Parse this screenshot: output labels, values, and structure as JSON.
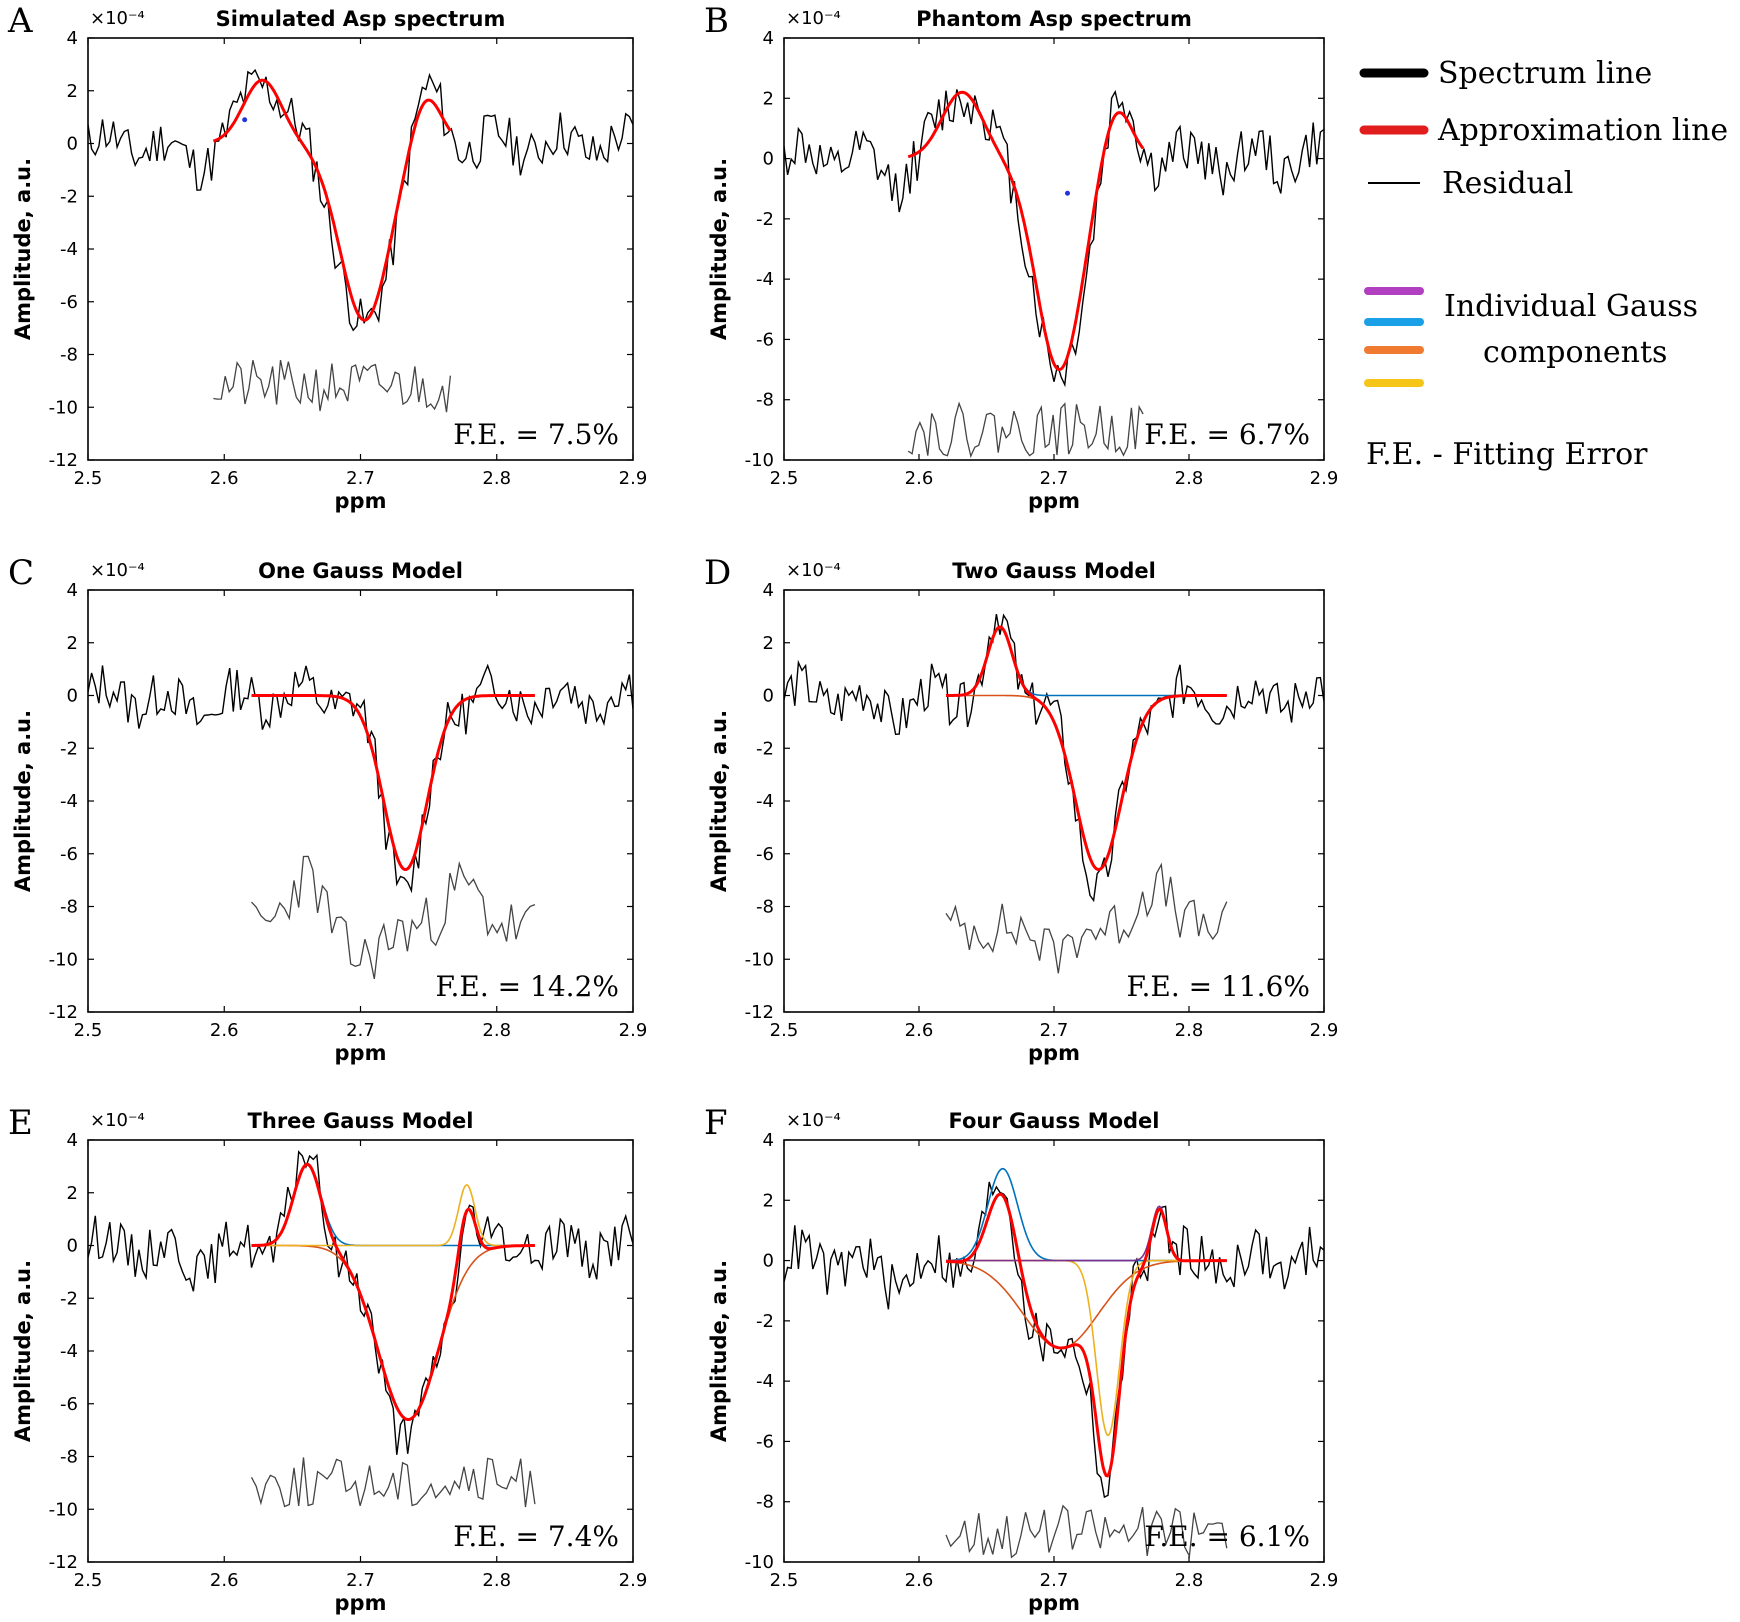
{
  "colors": {
    "spectrum": "#000000",
    "approximation": "#ff0000",
    "residual": "#000000",
    "gauss_purple": "#7e2f8e",
    "gauss_blue": "#0072bd",
    "gauss_orange": "#d95319",
    "gauss_yellow": "#edb120",
    "legend_purple": "#b040c0",
    "legend_blue": "#1aa0e6",
    "legend_orange": "#f07a30",
    "legend_yellow": "#f5c518"
  },
  "legend": {
    "items": [
      {
        "label": "Spectrum line",
        "color": "#000000",
        "thick": true
      },
      {
        "label": "Approximation line",
        "color": "#e21d1d",
        "thick": true
      },
      {
        "label": "Residual",
        "color": "#000000",
        "thick": false
      }
    ],
    "gauss_label_line1": "Individual Gauss",
    "gauss_label_line2": "components",
    "gauss_colors": [
      "#b040c0",
      "#1aa0e6",
      "#f07a30",
      "#f5c518"
    ],
    "fe_note": "F.E. -  Fitting Error"
  },
  "chart_data": [
    {
      "panel": "A",
      "type": "line",
      "title": "Simulated Asp spectrum",
      "xlabel": "ppm",
      "ylabel": "Amplitude, a.u.",
      "exponent": "×10⁻⁴",
      "xlim": [
        2.5,
        2.9
      ],
      "ylim": [
        -12,
        4
      ],
      "xticks": [
        "2.5",
        "2.6",
        "2.7",
        "2.8",
        "2.9"
      ],
      "yticks": [
        "4",
        "2",
        "0",
        "-2",
        "-4",
        "-6",
        "-8",
        "-10",
        "-12"
      ],
      "fe": "F.E. = 7.5%",
      "model": {
        "gaussians": [
          {
            "amp": 2.4,
            "mu": 2.628,
            "sigma": 0.014
          },
          {
            "amp": -6.7,
            "mu": 2.703,
            "sigma": 0.018
          },
          {
            "amp": 1.9,
            "mu": 2.748,
            "sigma": 0.011
          }
        ],
        "range": [
          2.592,
          2.766
        ],
        "show_components": false
      },
      "spectrum": {
        "seed": 11,
        "noise": 0.9
      },
      "residual": {
        "offset": -9.2,
        "amp": 0.9,
        "seed": 21
      },
      "marker": {
        "x": 2.615,
        "y": 0.9
      }
    },
    {
      "panel": "B",
      "type": "line",
      "title": "Phantom Asp spectrum",
      "xlabel": "ppm",
      "ylabel": "Amplitude, a.u.",
      "exponent": "×10⁻⁴",
      "xlim": [
        2.5,
        2.9
      ],
      "ylim": [
        -10,
        4
      ],
      "xticks": [
        "2.5",
        "2.6",
        "2.7",
        "2.8",
        "2.9"
      ],
      "yticks": [
        "4",
        "2",
        "0",
        "-2",
        "-4",
        "-6",
        "-8",
        "-10"
      ],
      "fe": "F.E. = 6.7%",
      "model": {
        "gaussians": [
          {
            "amp": 2.2,
            "mu": 2.632,
            "sigma": 0.015
          },
          {
            "amp": -7.0,
            "mu": 2.704,
            "sigma": 0.017
          },
          {
            "amp": 1.8,
            "mu": 2.746,
            "sigma": 0.011
          }
        ],
        "range": [
          2.592,
          2.766
        ],
        "show_components": false
      },
      "spectrum": {
        "seed": 12,
        "noise": 0.85
      },
      "residual": {
        "offset": -9.0,
        "amp": 0.8,
        "seed": 22
      },
      "marker": {
        "x": 2.71,
        "y": -1.15
      }
    },
    {
      "panel": "C",
      "type": "line",
      "title": "One Gauss Model",
      "xlabel": "ppm",
      "ylabel": "Amplitude, a.u.",
      "exponent": "×10⁻⁴",
      "xlim": [
        2.5,
        2.9
      ],
      "ylim": [
        -12,
        4
      ],
      "xticks": [
        "2.5",
        "2.6",
        "2.7",
        "2.8",
        "2.9"
      ],
      "yticks": [
        "4",
        "2",
        "0",
        "-2",
        "-4",
        "-6",
        "-8",
        "-10",
        "-12"
      ],
      "fe": "F.E. = 14.2%",
      "model": {
        "gaussians": [
          {
            "amp": -6.6,
            "mu": 2.733,
            "sigma": 0.016
          }
        ],
        "range": [
          2.62,
          2.828
        ],
        "show_components": false
      },
      "spectrum": {
        "seed": 13,
        "noise": 0.9
      },
      "residual": {
        "offset": -8.8,
        "amp": 1.0,
        "seed": 23,
        "bumps": [
          {
            "amp": 2.0,
            "mu": 2.66,
            "sigma": 0.012
          },
          {
            "amp": 1.6,
            "mu": 2.775,
            "sigma": 0.012
          },
          {
            "amp": -1.2,
            "mu": 2.7,
            "sigma": 0.015
          }
        ]
      },
      "marker": null
    },
    {
      "panel": "D",
      "type": "line",
      "title": "Two Gauss Model",
      "xlabel": "ppm",
      "ylabel": "Amplitude, a.u.",
      "exponent": "×10⁻⁴",
      "xlim": [
        2.5,
        2.9
      ],
      "ylim": [
        -12,
        4
      ],
      "xticks": [
        "2.5",
        "2.6",
        "2.7",
        "2.8",
        "2.9"
      ],
      "yticks": [
        "4",
        "2",
        "0",
        "-2",
        "-4",
        "-6",
        "-8",
        "-10",
        "-12"
      ],
      "fe": "F.E. = 11.6%",
      "model": {
        "gaussians": [
          {
            "amp": 2.6,
            "mu": 2.66,
            "sigma": 0.009,
            "color": "#0072bd"
          },
          {
            "amp": -6.6,
            "mu": 2.733,
            "sigma": 0.017,
            "color": "#d95319"
          }
        ],
        "range": [
          2.62,
          2.828
        ],
        "show_components": true
      },
      "spectrum": {
        "seed": 14,
        "noise": 0.9
      },
      "residual": {
        "offset": -8.8,
        "amp": 0.9,
        "seed": 24,
        "bumps": [
          {
            "amp": 1.6,
            "mu": 2.775,
            "sigma": 0.012
          },
          {
            "amp": -1.0,
            "mu": 2.7,
            "sigma": 0.01
          }
        ]
      },
      "marker": null
    },
    {
      "panel": "E",
      "type": "line",
      "title": "Three Gauss Model",
      "xlabel": "ppm",
      "ylabel": "Amplitude, a.u.",
      "exponent": "×10⁻⁴",
      "xlim": [
        2.5,
        2.9
      ],
      "ylim": [
        -12,
        4
      ],
      "xticks": [
        "2.5",
        "2.6",
        "2.7",
        "2.8",
        "2.9"
      ],
      "yticks": [
        "4",
        "2",
        "0",
        "-2",
        "-4",
        "-6",
        "-8",
        "-10",
        "-12"
      ],
      "fe": "F.E. = 7.4%",
      "model": {
        "gaussians": [
          {
            "amp": 3.1,
            "mu": 2.661,
            "sigma": 0.01,
            "color": "#0072bd"
          },
          {
            "amp": -6.6,
            "mu": 2.735,
            "sigma": 0.022,
            "color": "#d95319"
          },
          {
            "amp": 2.3,
            "mu": 2.778,
            "sigma": 0.006,
            "color": "#edb120"
          }
        ],
        "range": [
          2.62,
          2.828
        ],
        "show_components": true
      },
      "spectrum": {
        "seed": 15,
        "noise": 0.9
      },
      "residual": {
        "offset": -9.0,
        "amp": 0.9,
        "seed": 25
      },
      "marker": null
    },
    {
      "panel": "F",
      "type": "line",
      "title": "Four Gauss Model",
      "xlabel": "ppm",
      "ylabel": "Amplitude, a.u.",
      "exponent": "×10⁻⁴",
      "xlim": [
        2.5,
        2.9
      ],
      "ylim": [
        -10,
        4
      ],
      "xticks": [
        "2.5",
        "2.6",
        "2.7",
        "2.8",
        "2.9"
      ],
      "yticks": [
        "4",
        "2",
        "0",
        "-2",
        "-4",
        "-6",
        "-8",
        "-10"
      ],
      "fe": "F.E. = 6.1%",
      "model": {
        "gaussians": [
          {
            "amp": 3.05,
            "mu": 2.662,
            "sigma": 0.011,
            "color": "#0072bd"
          },
          {
            "amp": -2.9,
            "mu": 2.705,
            "sigma": 0.028,
            "color": "#d95319"
          },
          {
            "amp": -5.8,
            "mu": 2.74,
            "sigma": 0.0085,
            "color": "#edb120"
          },
          {
            "amp": 1.8,
            "mu": 2.778,
            "sigma": 0.0055,
            "color": "#7e2f8e"
          }
        ],
        "range": [
          2.62,
          2.828
        ],
        "show_components": true
      },
      "spectrum": {
        "seed": 16,
        "noise": 0.85
      },
      "residual": {
        "offset": -9.0,
        "amp": 0.8,
        "seed": 26
      },
      "marker": null
    }
  ]
}
